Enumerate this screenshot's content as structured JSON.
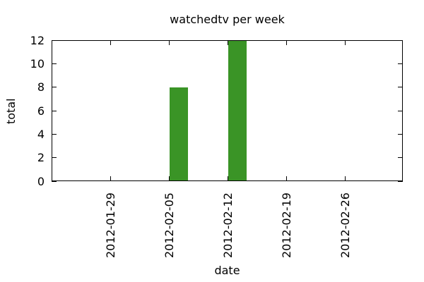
{
  "chart_data": {
    "type": "bar",
    "title": "watchedtv per week",
    "xlabel": "date",
    "ylabel": "total",
    "categories": [
      "2012-01-29",
      "2012-02-05",
      "2012-02-12",
      "2012-02-19",
      "2012-02-26"
    ],
    "values": [
      0,
      8,
      12,
      0,
      0
    ],
    "yticks": [
      0,
      2,
      4,
      6,
      8,
      10,
      12
    ],
    "ylim": [
      0,
      12
    ],
    "grid": false,
    "legend": "none",
    "bar_color": "#3a9426",
    "axis_color": "#000000",
    "text_color": "#000000",
    "background_color": "#ffffff"
  }
}
